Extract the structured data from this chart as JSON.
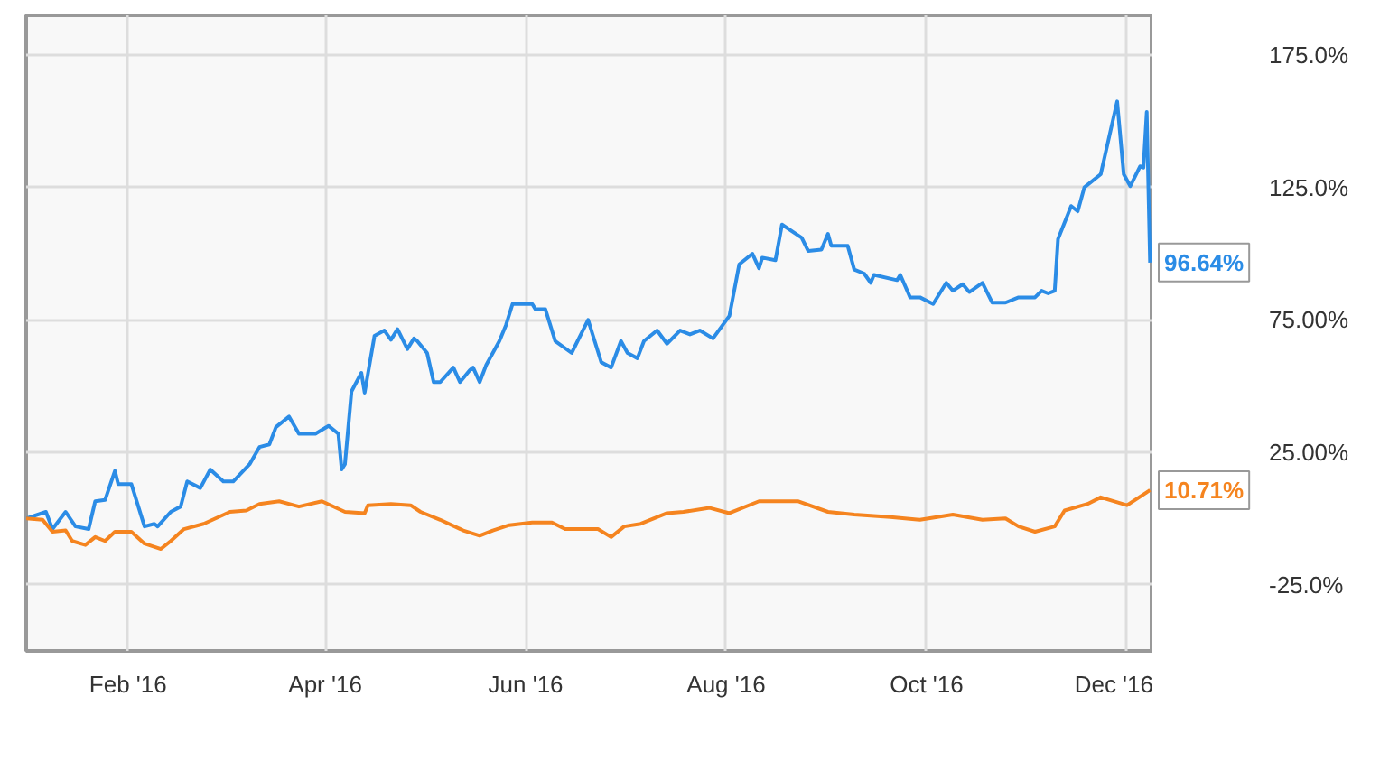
{
  "chart_data": {
    "type": "line",
    "xlim": [
      "2016-01-01",
      "2016-12-09"
    ],
    "xticks": [
      {
        "value": "2016-02-01",
        "label": "Feb '16"
      },
      {
        "value": "2016-04-01",
        "label": "Apr '16"
      },
      {
        "value": "2016-06-01",
        "label": "Jun '16"
      },
      {
        "value": "2016-08-01",
        "label": "Aug '16"
      },
      {
        "value": "2016-10-01",
        "label": "Oct '16"
      },
      {
        "value": "2016-12-01",
        "label": "Dec '16"
      }
    ],
    "ylim": [
      -50,
      190
    ],
    "yticks": [
      {
        "value": -25,
        "label": "-25.0%"
      },
      {
        "value": 25,
        "label": "25.00%"
      },
      {
        "value": 75,
        "label": "75.00%"
      },
      {
        "value": 125,
        "label": "125.0%"
      },
      {
        "value": 175,
        "label": "175.0%"
      }
    ],
    "grid": true,
    "line_style": "solid",
    "marker": "none",
    "series": [
      {
        "color": "#2b8ce6",
        "x": [
          "2016-01-01",
          "2016-01-07",
          "2016-01-09",
          "2016-01-13",
          "2016-01-16",
          "2016-01-20",
          "2016-01-22",
          "2016-01-25",
          "2016-01-28",
          "2016-01-29",
          "2016-02-02",
          "2016-02-06",
          "2016-02-09",
          "2016-02-10",
          "2016-02-14",
          "2016-02-17",
          "2016-02-19",
          "2016-02-23",
          "2016-02-26",
          "2016-03-01",
          "2016-03-04",
          "2016-03-09",
          "2016-03-12",
          "2016-03-15",
          "2016-03-17",
          "2016-03-21",
          "2016-03-24",
          "2016-03-29",
          "2016-04-02",
          "2016-04-05",
          "2016-04-06",
          "2016-04-07",
          "2016-04-09",
          "2016-04-12",
          "2016-04-13",
          "2016-04-16",
          "2016-04-19",
          "2016-04-21",
          "2016-04-23",
          "2016-04-26",
          "2016-04-28",
          "2016-04-29",
          "2016-05-02",
          "2016-05-04",
          "2016-05-06",
          "2016-05-10",
          "2016-05-12",
          "2016-05-15",
          "2016-05-16",
          "2016-05-18",
          "2016-05-20",
          "2016-05-24",
          "2016-05-26",
          "2016-05-28",
          "2016-06-03",
          "2016-06-04",
          "2016-06-07",
          "2016-06-10",
          "2016-06-15",
          "2016-06-20",
          "2016-06-24",
          "2016-06-27",
          "2016-06-30",
          "2016-07-02",
          "2016-07-05",
          "2016-07-07",
          "2016-07-11",
          "2016-07-14",
          "2016-07-18",
          "2016-07-21",
          "2016-07-24",
          "2016-07-28",
          "2016-08-02",
          "2016-08-05",
          "2016-08-09",
          "2016-08-11",
          "2016-08-12",
          "2016-08-16",
          "2016-08-18",
          "2016-08-24",
          "2016-08-26",
          "2016-08-30",
          "2016-09-01",
          "2016-09-02",
          "2016-09-07",
          "2016-09-09",
          "2016-09-12",
          "2016-09-14",
          "2016-09-15",
          "2016-09-22",
          "2016-09-23",
          "2016-09-26",
          "2016-09-29",
          "2016-10-03",
          "2016-10-07",
          "2016-10-09",
          "2016-10-12",
          "2016-10-14",
          "2016-10-18",
          "2016-10-21",
          "2016-10-25",
          "2016-10-29",
          "2016-11-03",
          "2016-11-05",
          "2016-11-07",
          "2016-11-09",
          "2016-11-10",
          "2016-11-14",
          "2016-11-16",
          "2016-11-18",
          "2016-11-23",
          "2016-11-28",
          "2016-11-30",
          "2016-12-02",
          "2016-12-05",
          "2016-12-06",
          "2016-12-07",
          "2016-12-08"
        ],
        "values": [
          0,
          2.5,
          -4,
          2.5,
          -3,
          -4,
          6.5,
          7,
          18,
          13,
          13,
          -3,
          -2,
          -3,
          2.5,
          4.5,
          14,
          11.5,
          18.5,
          14,
          14,
          20.5,
          27,
          28,
          34.5,
          38.5,
          32,
          32,
          35,
          32,
          18.5,
          20.5,
          48,
          55,
          47.5,
          69,
          71,
          67.5,
          71.5,
          64,
          68,
          67,
          62.5,
          51.5,
          51.5,
          57,
          51.5,
          56,
          57,
          51.5,
          58,
          67,
          73,
          81,
          81,
          79,
          79,
          67,
          62.5,
          75,
          59,
          57,
          67,
          62.5,
          60.5,
          67,
          71,
          66,
          71,
          69.5,
          71,
          68,
          76.5,
          96,
          100,
          94.5,
          98.5,
          97.5,
          111,
          106,
          101,
          101.5,
          107.5,
          103,
          103,
          94,
          92.5,
          89,
          92,
          90,
          92,
          83.5,
          83.5,
          81,
          89,
          86,
          88.5,
          85.5,
          89,
          81.5,
          81.5,
          83.5,
          83.5,
          86,
          85,
          86,
          105.5,
          118,
          116,
          125,
          130,
          157.5,
          130,
          125.5,
          133,
          132.5,
          153.5,
          96.64
        ]
      },
      {
        "color": "#f5841f",
        "x": [
          "2016-01-01",
          "2016-01-06",
          "2016-01-09",
          "2016-01-13",
          "2016-01-15",
          "2016-01-19",
          "2016-01-22",
          "2016-01-25",
          "2016-01-28",
          "2016-02-02",
          "2016-02-06",
          "2016-02-11",
          "2016-02-14",
          "2016-02-18",
          "2016-02-24",
          "2016-03-03",
          "2016-03-08",
          "2016-03-12",
          "2016-03-18",
          "2016-03-24",
          "2016-03-31",
          "2016-04-07",
          "2016-04-13",
          "2016-04-14",
          "2016-04-21",
          "2016-04-27",
          "2016-04-30",
          "2016-05-06",
          "2016-05-13",
          "2016-05-18",
          "2016-05-22",
          "2016-05-27",
          "2016-06-03",
          "2016-06-09",
          "2016-06-13",
          "2016-06-18",
          "2016-06-23",
          "2016-06-27",
          "2016-07-01",
          "2016-07-06",
          "2016-07-14",
          "2016-07-19",
          "2016-07-27",
          "2016-08-02",
          "2016-08-11",
          "2016-08-23",
          "2016-09-01",
          "2016-09-09",
          "2016-09-20",
          "2016-09-29",
          "2016-10-09",
          "2016-10-18",
          "2016-10-25",
          "2016-10-29",
          "2016-11-03",
          "2016-11-09",
          "2016-11-12",
          "2016-11-19",
          "2016-11-23",
          "2016-12-01",
          "2016-12-08"
        ],
        "values": [
          0,
          -0.5,
          -5,
          -4.5,
          -8.5,
          -10,
          -7,
          -8.5,
          -5,
          -5,
          -9.5,
          -11.5,
          -8.5,
          -4,
          -2,
          2.5,
          3,
          5.5,
          6.5,
          4.5,
          6.5,
          2.5,
          2,
          5,
          5.5,
          5,
          2.5,
          -0.5,
          -4.5,
          -6.5,
          -4.5,
          -2.5,
          -1.5,
          -1.5,
          -4,
          -4,
          -4,
          -7,
          -3,
          -2,
          2,
          2.5,
          4,
          2,
          6.5,
          6.5,
          2.5,
          1.5,
          0.5,
          -0.5,
          1.5,
          -0.5,
          0,
          -3,
          -5,
          -3,
          3,
          5.5,
          8,
          5,
          10.71
        ]
      }
    ],
    "annotations": [
      {
        "text": "96.64%",
        "x": "2016-12-08",
        "y": 96.64
      },
      {
        "text": "10.71%",
        "x": "2016-12-08",
        "y": 10.71
      }
    ]
  }
}
